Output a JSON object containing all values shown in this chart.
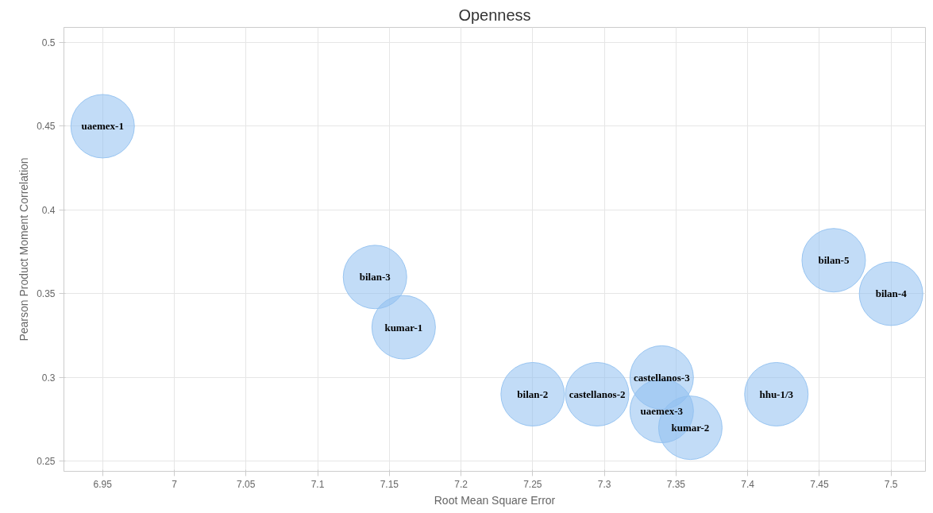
{
  "chart_data": {
    "type": "bubble",
    "title": "Openness",
    "xlabel": "Root Mean Square Error",
    "ylabel": "Pearson Product Moment Correlation",
    "xlim": [
      6.923,
      7.524
    ],
    "ylim": [
      0.244,
      0.509
    ],
    "xticks": [
      6.95,
      7,
      7.05,
      7.1,
      7.15,
      7.2,
      7.25,
      7.3,
      7.35,
      7.4,
      7.45,
      7.5
    ],
    "yticks": [
      0.25,
      0.3,
      0.35,
      0.4,
      0.45,
      0.5
    ],
    "grid": true,
    "legend": false,
    "series": [
      {
        "name": "uaemex-1",
        "color": "#90c0f0",
        "x": [
          6.95
        ],
        "values": [
          0.45
        ],
        "sizes": [
          1
        ]
      },
      {
        "name": "bilan-3",
        "color": "#90c0f0",
        "x": [
          7.14
        ],
        "values": [
          0.36
        ],
        "sizes": [
          1
        ]
      },
      {
        "name": "kumar-1",
        "color": "#90c0f0",
        "x": [
          7.16
        ],
        "values": [
          0.33
        ],
        "sizes": [
          1
        ]
      },
      {
        "name": "bilan-2",
        "color": "#90c0f0",
        "x": [
          7.25
        ],
        "values": [
          0.29
        ],
        "sizes": [
          1
        ]
      },
      {
        "name": "castellanos-2",
        "color": "#90c0f0",
        "x": [
          7.295
        ],
        "values": [
          0.29
        ],
        "sizes": [
          1
        ]
      },
      {
        "name": "castellanos-3",
        "color": "#90c0f0",
        "x": [
          7.34
        ],
        "values": [
          0.3
        ],
        "sizes": [
          1
        ]
      },
      {
        "name": "uaemex-3",
        "color": "#90c0f0",
        "x": [
          7.34
        ],
        "values": [
          0.28
        ],
        "sizes": [
          1
        ]
      },
      {
        "name": "kumar-2",
        "color": "#90c0f0",
        "x": [
          7.36
        ],
        "values": [
          0.27
        ],
        "sizes": [
          1
        ]
      },
      {
        "name": "hhu-1/3",
        "color": "#90c0f0",
        "x": [
          7.42
        ],
        "values": [
          0.29
        ],
        "sizes": [
          1
        ]
      },
      {
        "name": "bilan-5",
        "color": "#90c0f0",
        "x": [
          7.46
        ],
        "values": [
          0.37
        ],
        "sizes": [
          1
        ]
      },
      {
        "name": "bilan-4",
        "color": "#90c0f0",
        "x": [
          7.5
        ],
        "values": [
          0.35
        ],
        "sizes": [
          1
        ]
      }
    ]
  }
}
